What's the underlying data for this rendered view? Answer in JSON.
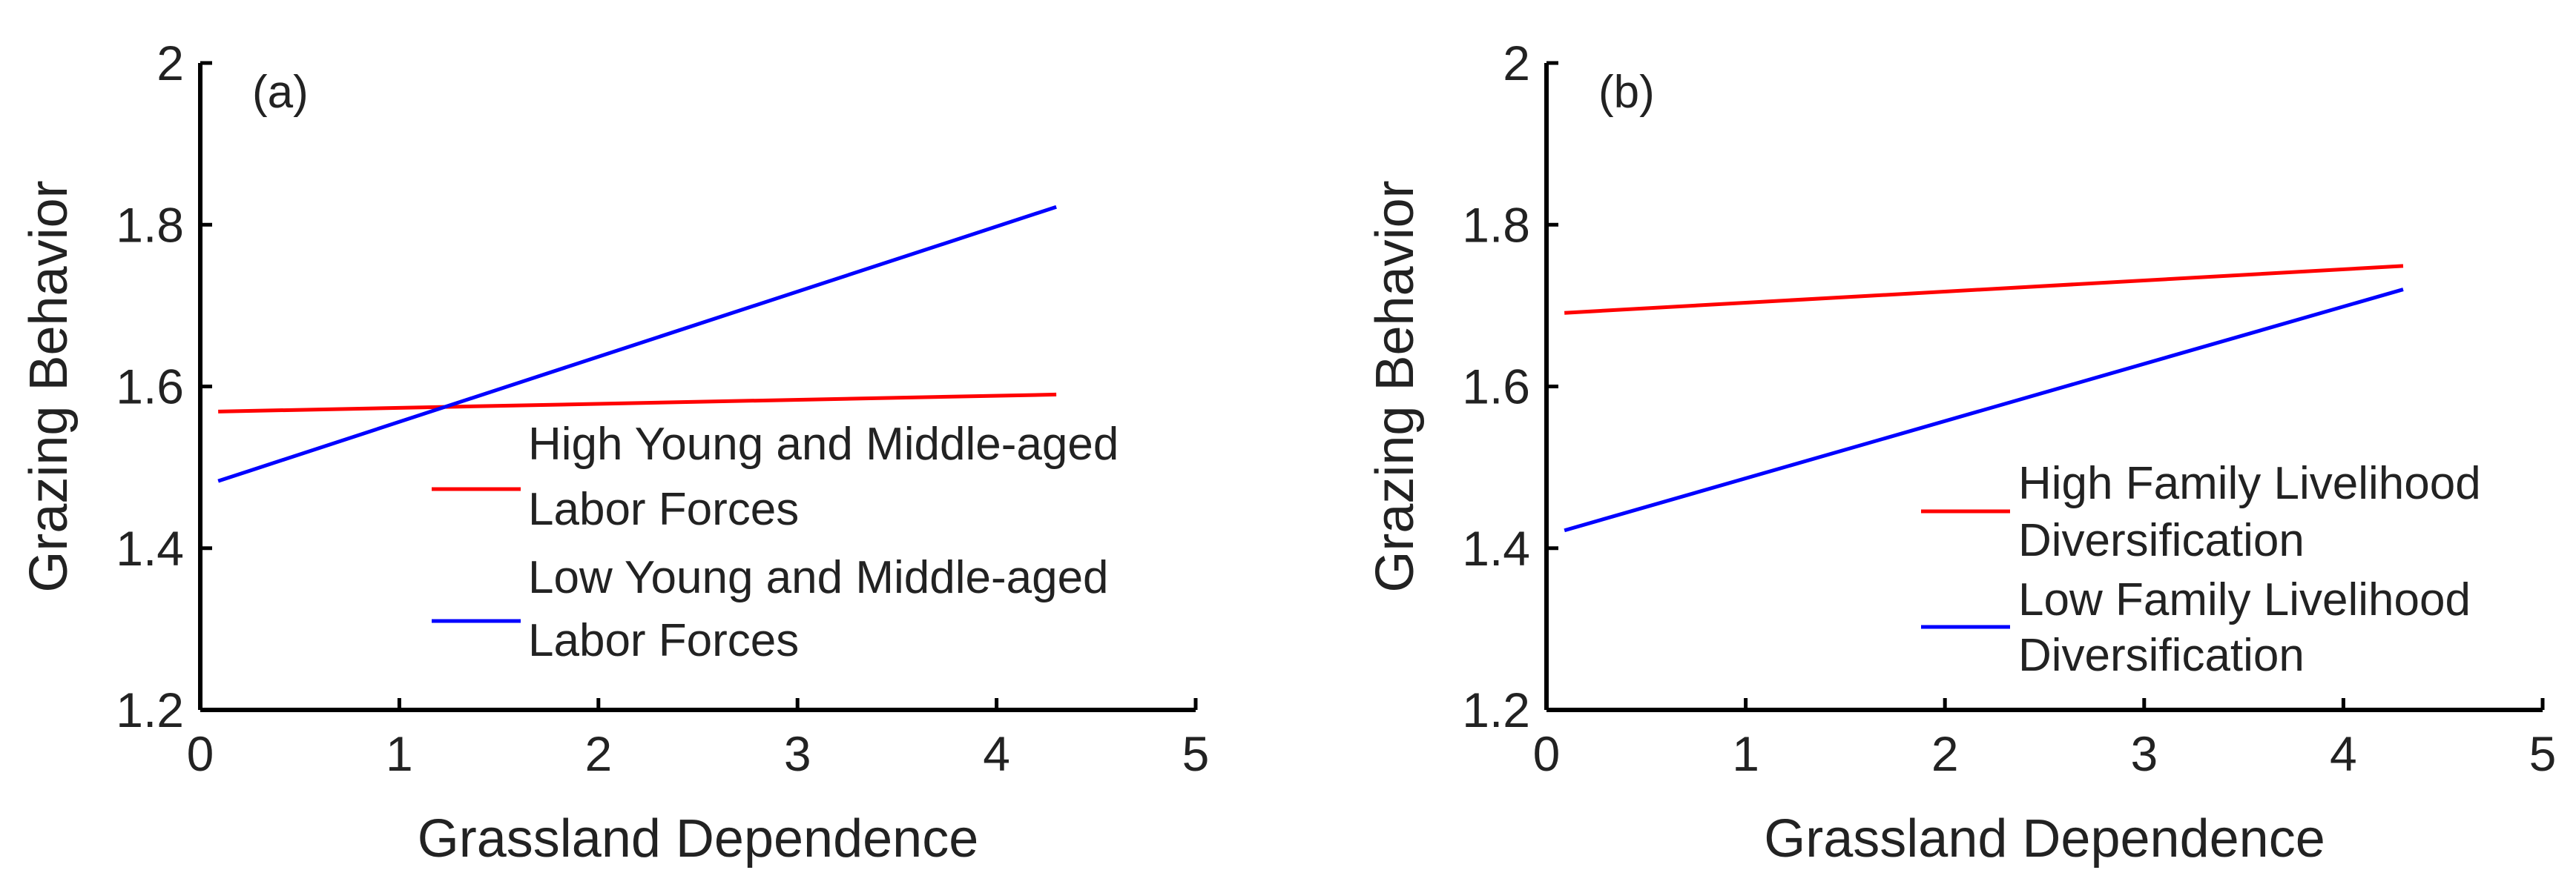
{
  "chart_data": [
    {
      "type": "line",
      "panel_label": "(a)",
      "xlabel": "Grassland Dependence",
      "ylabel": "Grazing Behavior",
      "xlim": [
        0,
        5
      ],
      "ylim": [
        1.2,
        2
      ],
      "xticks": [
        "0",
        "1",
        "2",
        "3",
        "4",
        "5"
      ],
      "yticks": [
        "1.2",
        "1.4",
        "1.6",
        "1.8",
        "2"
      ],
      "legend_position": "lower-right",
      "series": [
        {
          "name_lines": [
            "High Young and Middle-aged",
            "Labor Forces"
          ],
          "color": "#ff0000",
          "x": [
            0.09,
            4.3
          ],
          "y": [
            1.569,
            1.59
          ]
        },
        {
          "name_lines": [
            "Low Young and Middle-aged",
            "Labor Forces"
          ],
          "color": "#0000ff",
          "x": [
            0.09,
            4.3
          ],
          "y": [
            1.483,
            1.822
          ]
        }
      ]
    },
    {
      "type": "line",
      "panel_label": "(b)",
      "xlabel": "Grassland Dependence",
      "ylabel": "Grazing Behavior",
      "xlim": [
        0,
        5
      ],
      "ylim": [
        1.2,
        2
      ],
      "xticks": [
        "0",
        "1",
        "2",
        "3",
        "4",
        "5"
      ],
      "yticks": [
        "1.2",
        "1.4",
        "1.6",
        "1.8",
        "2"
      ],
      "legend_position": "lower-right",
      "series": [
        {
          "name_lines": [
            "High Family Livelihood",
            "Diversification"
          ],
          "color": "#ff0000",
          "x": [
            0.09,
            4.3
          ],
          "y": [
            1.691,
            1.749
          ]
        },
        {
          "name_lines": [
            "Low Family Livelihood",
            "Diversification"
          ],
          "color": "#0000ff",
          "x": [
            0.09,
            4.3
          ],
          "y": [
            1.422,
            1.72
          ]
        }
      ]
    }
  ]
}
